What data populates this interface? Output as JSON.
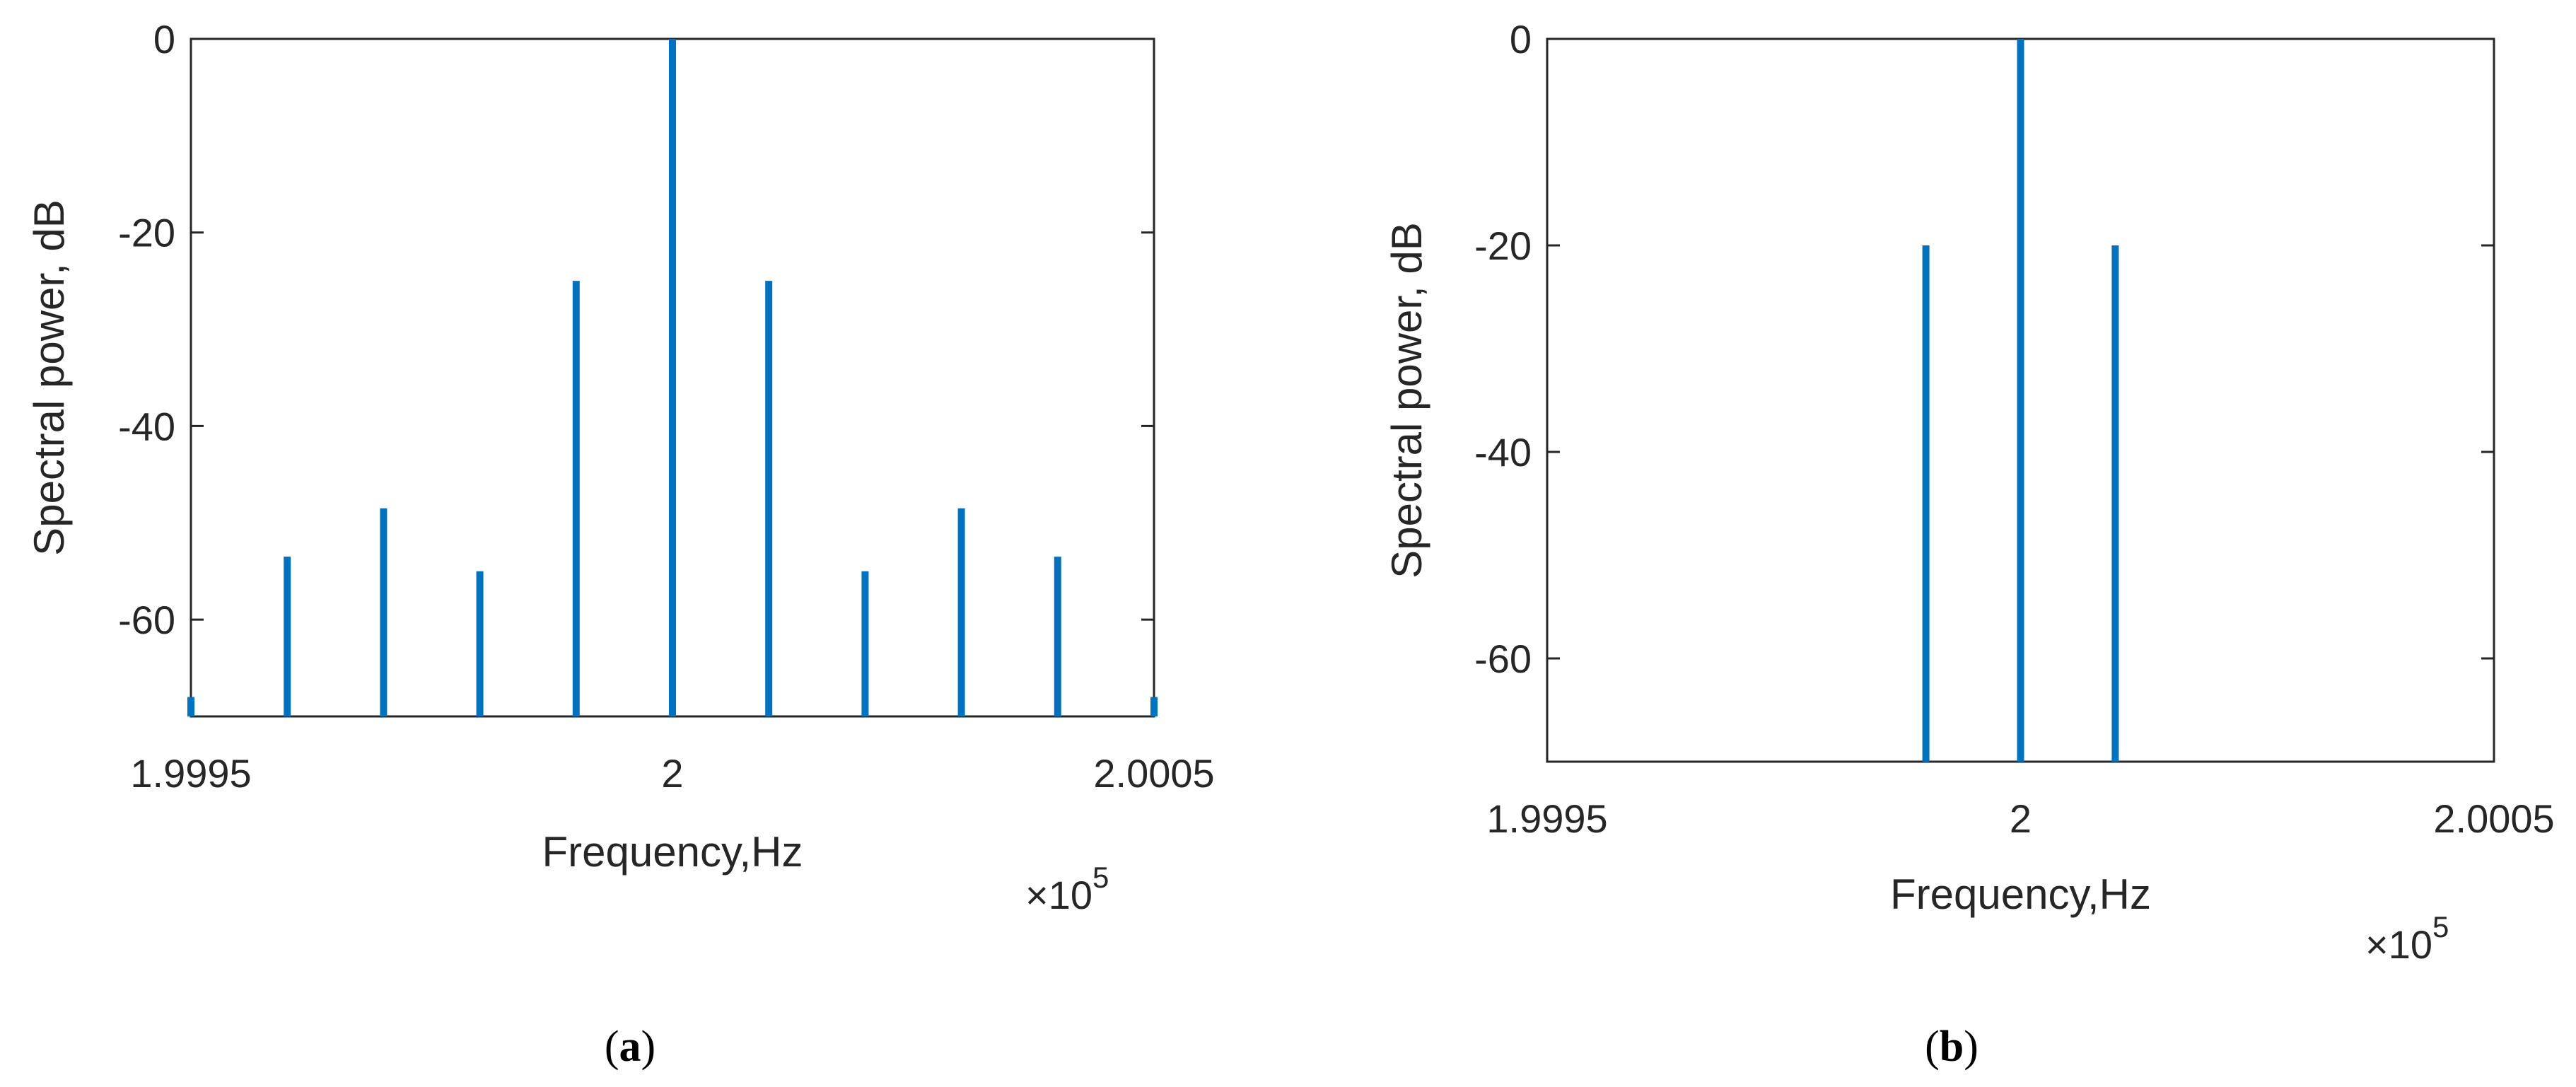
{
  "figure": {
    "caption_a_open": "(",
    "caption_a_letter": "a",
    "caption_a_close": ")",
    "caption_b_open": "(",
    "caption_b_letter": "b",
    "caption_b_close": ")"
  },
  "chart_data": [
    {
      "type": "bar",
      "panel": "a",
      "xlabel": "Frequency,Hz",
      "ylabel": "Spectral power, dB",
      "x_multiplier": "×10",
      "x_multiplier_exp": "5",
      "xlim": [
        1.9995,
        2.0005
      ],
      "ylim": [
        -70,
        0
      ],
      "xticks": [
        1.9995,
        2,
        2.0005
      ],
      "xtick_labels": [
        "1.9995",
        "2",
        "2.0005"
      ],
      "yticks": [
        0,
        -20,
        -40,
        -60
      ],
      "ytick_labels": [
        "0",
        "-20",
        "-40",
        "-60"
      ],
      "grid": false,
      "series_color": "#0072BD",
      "x": [
        1.9995,
        1.9996,
        1.9997,
        1.9998,
        1.9999,
        2.0,
        2.0001,
        2.0002,
        2.0003,
        2.0004,
        2.0005
      ],
      "values": [
        -68,
        -53.5,
        -48.5,
        -55,
        -25,
        0,
        -25,
        -55,
        -48.5,
        -53.5,
        -68
      ]
    },
    {
      "type": "bar",
      "panel": "b",
      "xlabel": "Frequency,Hz",
      "ylabel": "Spectral power, dB",
      "x_multiplier": "×10",
      "x_multiplier_exp": "5",
      "xlim": [
        1.9995,
        2.0005
      ],
      "ylim": [
        -70,
        0
      ],
      "xticks": [
        1.9995,
        2,
        2.0005
      ],
      "xtick_labels": [
        "1.9995",
        "2",
        "2.0005"
      ],
      "yticks": [
        0,
        -20,
        -40,
        -60
      ],
      "ytick_labels": [
        "0",
        "-20",
        "-40",
        "-60"
      ],
      "grid": false,
      "series_color": "#0072BD",
      "x": [
        1.9999,
        2.0,
        2.0001
      ],
      "values": [
        -20,
        0,
        -20
      ]
    }
  ]
}
